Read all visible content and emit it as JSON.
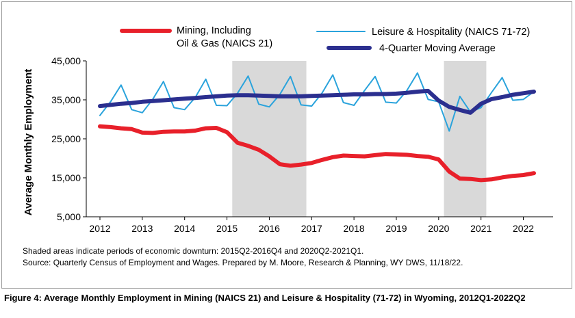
{
  "chart_data": {
    "type": "line",
    "ylabel": "Average Monthly Employment",
    "xlabel": "",
    "ylim": [
      5000,
      45000
    ],
    "yticks": [
      5000,
      15000,
      25000,
      35000,
      45000
    ],
    "ytick_labels": [
      "5,000",
      "15,000",
      "25,000",
      "35,000",
      "45,000"
    ],
    "x_start_year": 2012,
    "x_tick_labels": [
      "2012",
      "2013",
      "2014",
      "2015",
      "2016",
      "2017",
      "2018",
      "2019",
      "2020",
      "2021",
      "2022"
    ],
    "shaded_periods": [
      {
        "start": "2015Q2",
        "end": "2016Q4"
      },
      {
        "start": "2020Q2",
        "end": "2021Q1"
      }
    ],
    "shade_color": "#d9d9d9",
    "grid": false,
    "legend_position": "top",
    "series": [
      {
        "name": "Mining, Including Oil & Gas (NAICS 21)",
        "name_lines": [
          "Mining, Including",
          "Oil & Gas (NAICS 21)"
        ],
        "color": "#e8202a",
        "values": [
          28200,
          28000,
          27700,
          27500,
          26600,
          26500,
          26800,
          26900,
          26900,
          27100,
          27700,
          27800,
          26700,
          24000,
          23200,
          22200,
          20500,
          18500,
          18100,
          18400,
          18800,
          19600,
          20300,
          20700,
          20600,
          20500,
          20800,
          21100,
          21000,
          20900,
          20600,
          20400,
          19700,
          16600,
          14800,
          14700,
          14400,
          14600,
          15100,
          15500,
          15700,
          16200
        ]
      },
      {
        "name": "Leisure & Hospitality (NAICS 71-72)",
        "color": "#2aa3dc",
        "values": [
          31000,
          34500,
          38800,
          32500,
          31700,
          35200,
          39700,
          33000,
          32500,
          35600,
          40300,
          33600,
          33500,
          36700,
          41100,
          33900,
          33200,
          36400,
          41000,
          33700,
          33400,
          36800,
          41400,
          34300,
          33600,
          37400,
          41000,
          34400,
          34200,
          37400,
          41900,
          35100,
          34500,
          27000,
          35900,
          31900,
          33000,
          36900,
          40700,
          34900,
          35100,
          37100
        ]
      },
      {
        "name": "4-Quarter Moving Average",
        "color": "#2b2f8f",
        "values": [
          33400,
          33700,
          34000,
          34200,
          34500,
          34700,
          34900,
          35100,
          35300,
          35500,
          35700,
          35900,
          36100,
          36200,
          36200,
          36100,
          36000,
          35900,
          35900,
          35900,
          36000,
          36100,
          36200,
          36300,
          36400,
          36400,
          36500,
          36500,
          36600,
          36800,
          37100,
          37300,
          34800,
          33200,
          32400,
          31700,
          34000,
          35200,
          35700,
          36300,
          36700,
          37100
        ]
      }
    ]
  },
  "notes": {
    "shaded": "Shaded areas indicate periods of economic downturn: 2015Q2-2016Q4 and 2020Q2-2021Q1.",
    "source": "Source: Quarterly Census of Employment and Wages. Prepared by M. Moore, Research & Planning, WY DWS, 11/18/22."
  },
  "caption": "Figure 4: Average Monthly Employment in Mining (NAICS 21) and Leisure & Hospitality (71-72) in Wyoming, 2012Q1-2022Q2"
}
